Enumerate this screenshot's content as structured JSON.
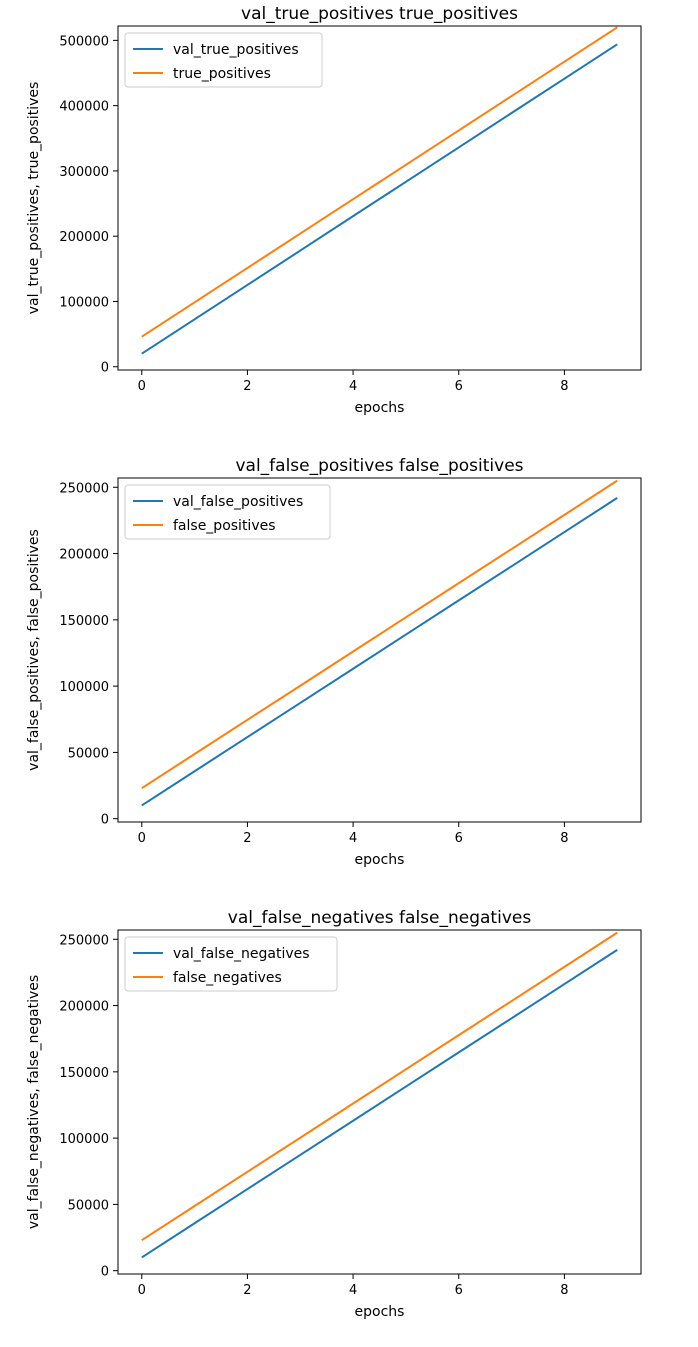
{
  "chart_data": [
    {
      "type": "line",
      "title": "val_true_positives true_positives",
      "xlabel": "epochs",
      "ylabel": "val_true_positives, true_positives",
      "x": [
        0,
        1,
        2,
        3,
        4,
        5,
        6,
        7,
        8,
        9
      ],
      "xlim": [
        -0.45,
        9.45
      ],
      "ylim": [
        -5000,
        522000
      ],
      "xticks": [
        0,
        2,
        4,
        6,
        8
      ],
      "yticks": [
        0,
        100000,
        200000,
        300000,
        400000,
        500000
      ],
      "grid": false,
      "legend_position": "upper left",
      "series": [
        {
          "name": "val_true_positives",
          "color": "#1f77b4",
          "values": [
            20000,
            72700,
            125300,
            178000,
            230700,
            283300,
            336000,
            388700,
            441300,
            494000
          ]
        },
        {
          "name": "true_positives",
          "color": "#ff7f0e",
          "values": [
            46000,
            98700,
            151300,
            204000,
            256700,
            309300,
            362000,
            414700,
            467300,
            520000
          ]
        }
      ]
    },
    {
      "type": "line",
      "title": "val_false_positives false_positives",
      "xlabel": "epochs",
      "ylabel": "val_false_positives, false_positives",
      "x": [
        0,
        1,
        2,
        3,
        4,
        5,
        6,
        7,
        8,
        9
      ],
      "xlim": [
        -0.45,
        9.45
      ],
      "ylim": [
        -2500,
        257000
      ],
      "xticks": [
        0,
        2,
        4,
        6,
        8
      ],
      "yticks": [
        0,
        50000,
        100000,
        150000,
        200000,
        250000
      ],
      "grid": false,
      "legend_position": "upper left",
      "series": [
        {
          "name": "val_false_positives",
          "color": "#1f77b4",
          "values": [
            10000,
            35800,
            61600,
            87300,
            113100,
            138900,
            164700,
            190400,
            216200,
            242000
          ]
        },
        {
          "name": "false_positives",
          "color": "#ff7f0e",
          "values": [
            23000,
            48800,
            74600,
            100300,
            126100,
            151900,
            177700,
            203400,
            229200,
            255000
          ]
        }
      ]
    },
    {
      "type": "line",
      "title": "val_false_negatives false_negatives",
      "xlabel": "epochs",
      "ylabel": "val_false_negatives, false_negatives",
      "x": [
        0,
        1,
        2,
        3,
        4,
        5,
        6,
        7,
        8,
        9
      ],
      "xlim": [
        -0.45,
        9.45
      ],
      "ylim": [
        -2500,
        257000
      ],
      "xticks": [
        0,
        2,
        4,
        6,
        8
      ],
      "yticks": [
        0,
        50000,
        100000,
        150000,
        200000,
        250000
      ],
      "grid": false,
      "legend_position": "upper left",
      "series": [
        {
          "name": "val_false_negatives",
          "color": "#1f77b4",
          "values": [
            10000,
            35800,
            61600,
            87300,
            113100,
            138900,
            164700,
            190400,
            216200,
            242000
          ]
        },
        {
          "name": "false_negatives",
          "color": "#ff7f0e",
          "values": [
            23000,
            48800,
            74600,
            100300,
            126100,
            151900,
            177700,
            203400,
            229200,
            255000
          ]
        }
      ]
    }
  ]
}
